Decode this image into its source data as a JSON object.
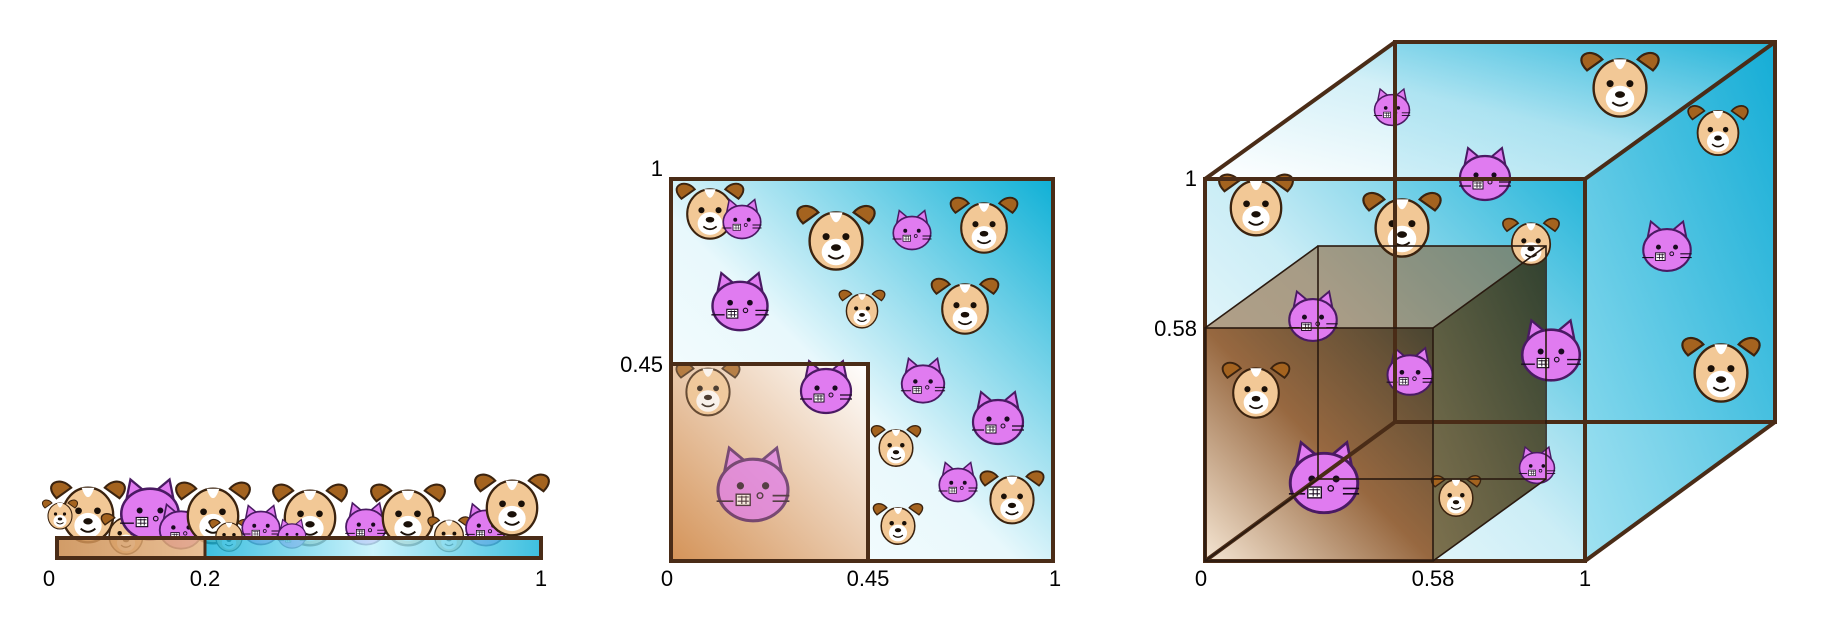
{
  "colors": {
    "frame": "#4a2c17",
    "inner_brown": "#c8884a",
    "inner_dark": "#4f3418",
    "outer_cyan": "#0fb4d8",
    "dog_fill": "#f2c896",
    "dog_ear": "#a4631f",
    "cat_fill": "#e07bf0",
    "cat_stroke": "#7a2aa0"
  },
  "icons": [
    "dog-icon",
    "cat-icon"
  ],
  "panels": {
    "line": {
      "labels": {
        "start": "0",
        "mid": "0.2",
        "end": "1"
      }
    },
    "square": {
      "x_labels": {
        "start": "0",
        "mid": "0.45",
        "end": "1"
      },
      "y_labels": {
        "mid": "0.45",
        "end": "1"
      }
    },
    "cube": {
      "x_labels": {
        "start": "0",
        "mid": "0.58",
        "end": "1"
      },
      "y_labels": {
        "mid": "0.58",
        "end": "1"
      }
    }
  }
}
